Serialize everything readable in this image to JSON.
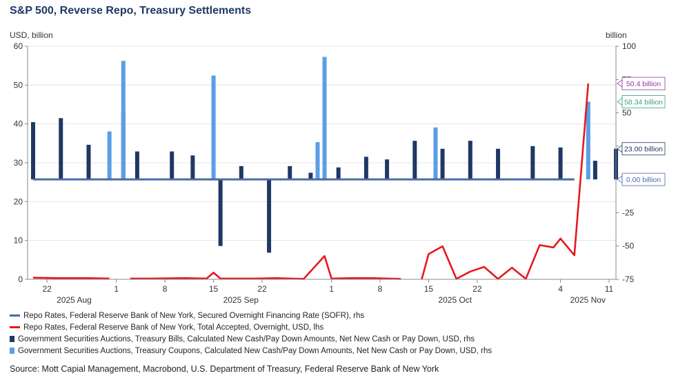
{
  "title": "S&P 500, Reverse Repo, Treasury Settlements",
  "source": "Source: Mott Capial Management, Macrobond, U.S. Department of Treasury, Federal Reserve Bank of New York",
  "chart_data": {
    "type": "bar",
    "left_axis_unit": "USD, billion",
    "right_axis_unit": "billion",
    "y_left": {
      "min": 0,
      "max": 60,
      "ticks": [
        0,
        10,
        20,
        30,
        40,
        50,
        60
      ]
    },
    "y_right": {
      "min": -75,
      "max": 100,
      "ticks": [
        -75,
        -50,
        -25,
        0,
        25,
        50,
        75,
        100
      ]
    },
    "x_ticks": [
      {
        "date": "2025-07-22",
        "label": "22"
      },
      {
        "date": "2025-08-01",
        "label": "1"
      },
      {
        "date": "2025-08-08",
        "label": "8"
      },
      {
        "date": "2025-08-15",
        "label": "15"
      },
      {
        "date": "2025-08-22",
        "label": "22"
      },
      {
        "date": "2025-09-01",
        "label": "1"
      },
      {
        "date": "2025-09-08",
        "label": "8"
      },
      {
        "date": "2025-09-15",
        "label": "15"
      },
      {
        "date": "2025-09-22",
        "label": "22"
      },
      {
        "date": "2025-10-04",
        "label": "4"
      },
      {
        "date": "2025-10-11",
        "label": "11"
      }
    ],
    "month_labels": [
      {
        "date": "2025-07-22",
        "label": "2025 Aug"
      },
      {
        "date": "2025-08-15",
        "label": "2025 Sep"
      },
      {
        "date": "2025-09-15",
        "label": "2025 Oct"
      },
      {
        "date": "2025-10-04",
        "label": "2025 Nov"
      }
    ],
    "x_range": [
      "2025-07-20",
      "2025-10-11"
    ],
    "series": [
      {
        "name": "Repo Rates, Federal Reserve Bank of New York, Secured Overnight Financing Rate (SOFR), rhs",
        "kind": "line",
        "axis": "right",
        "color": "#4a6aa8",
        "points": [
          [
            "2025-07-20",
            0
          ],
          [
            "2025-10-06",
            0
          ]
        ]
      },
      {
        "name": "Repo Rates, Federal Reserve Bank of New York, Total Accepted, Overnight, USD, lhs",
        "kind": "line",
        "axis": "left",
        "color": "#e8161d",
        "segments": [
          [
            [
              "2025-07-20",
              0.4
            ],
            [
              "2025-07-24",
              0.3
            ],
            [
              "2025-07-28",
              0.3
            ],
            [
              "2025-07-31",
              0.2
            ]
          ],
          [
            [
              "2025-08-03",
              0.2
            ],
            [
              "2025-08-06",
              0.2
            ],
            [
              "2025-08-11",
              0.3
            ],
            [
              "2025-08-14",
              0.2
            ],
            [
              "2025-08-15",
              1.7
            ],
            [
              "2025-08-16",
              0.2
            ],
            [
              "2025-08-21",
              0.2
            ],
            [
              "2025-08-24",
              0.3
            ],
            [
              "2025-08-28",
              0.1
            ],
            [
              "2025-08-31",
              6.0
            ],
            [
              "2025-09-01",
              0.2
            ],
            [
              "2025-09-04",
              0.3
            ],
            [
              "2025-09-07",
              0.3
            ],
            [
              "2025-09-11",
              0.1
            ]
          ],
          [
            [
              "2025-09-14",
              0.0
            ],
            [
              "2025-09-15",
              6.5
            ],
            [
              "2025-09-17",
              8.5
            ],
            [
              "2025-09-19",
              0.1
            ],
            [
              "2025-09-21",
              2.0
            ],
            [
              "2025-09-23",
              3.2
            ],
            [
              "2025-09-25",
              0.1
            ],
            [
              "2025-09-27",
              3.0
            ],
            [
              "2025-09-29",
              0.1
            ],
            [
              "2025-10-01",
              8.8
            ],
            [
              "2025-10-03",
              8.2
            ],
            [
              "2025-10-04",
              10.5
            ],
            [
              "2025-10-06",
              6.2
            ],
            [
              "2025-10-08",
              50.4
            ]
          ]
        ]
      },
      {
        "name": "Government Securities Auctions, Treasury Bills, Calculated New Cash/Pay Down Amounts, Net New Cash or Pay Down, USD, rhs",
        "kind": "bar",
        "axis": "right",
        "color": "#1f3864",
        "points": [
          [
            "2025-07-20",
            43
          ],
          [
            "2025-07-24",
            46
          ],
          [
            "2025-07-28",
            26
          ],
          [
            "2025-08-02",
            51
          ],
          [
            "2025-08-04",
            21
          ],
          [
            "2025-08-09",
            21
          ],
          [
            "2025-08-12",
            18
          ],
          [
            "2025-08-16",
            -50
          ],
          [
            "2025-08-19",
            10
          ],
          [
            "2025-08-23",
            -55
          ],
          [
            "2025-08-26",
            10
          ],
          [
            "2025-08-29",
            5
          ],
          [
            "2025-09-02",
            9
          ],
          [
            "2025-09-06",
            17
          ],
          [
            "2025-09-09",
            15
          ],
          [
            "2025-09-13",
            29
          ],
          [
            "2025-09-17",
            23
          ],
          [
            "2025-09-21",
            29
          ],
          [
            "2025-09-25",
            23
          ],
          [
            "2025-09-30",
            25
          ],
          [
            "2025-10-04",
            24
          ],
          [
            "2025-10-09",
            14
          ],
          [
            "2025-10-12",
            23
          ]
        ]
      },
      {
        "name": "Government Securities Auctions, Treasury Coupons, Calculated New Cash/Pay Down Amounts, Net New Cash or Pay Down, USD, rhs",
        "kind": "bar",
        "axis": "right",
        "color": "#5b9ee6",
        "points": [
          [
            "2025-07-31",
            36
          ],
          [
            "2025-08-02",
            89
          ],
          [
            "2025-08-15",
            78
          ],
          [
            "2025-08-30",
            28
          ],
          [
            "2025-08-31",
            92
          ],
          [
            "2025-09-16",
            39
          ],
          [
            "2025-10-08",
            58.34
          ]
        ]
      }
    ],
    "value_labels": [
      {
        "text": "50.4 billion",
        "axis": "left",
        "value": 50.4,
        "color": "#8b3a9e"
      },
      {
        "text": "58.34 billion",
        "axis": "right",
        "value": 58.34,
        "color": "#3a9e7f"
      },
      {
        "text": "23.00 billion",
        "axis": "right",
        "value": 23.0,
        "color": "#1f3864"
      },
      {
        "text": "0.00 billion",
        "axis": "right",
        "value": 0.0,
        "color": "#4a6aa8"
      }
    ],
    "legend_position": "bottom"
  }
}
